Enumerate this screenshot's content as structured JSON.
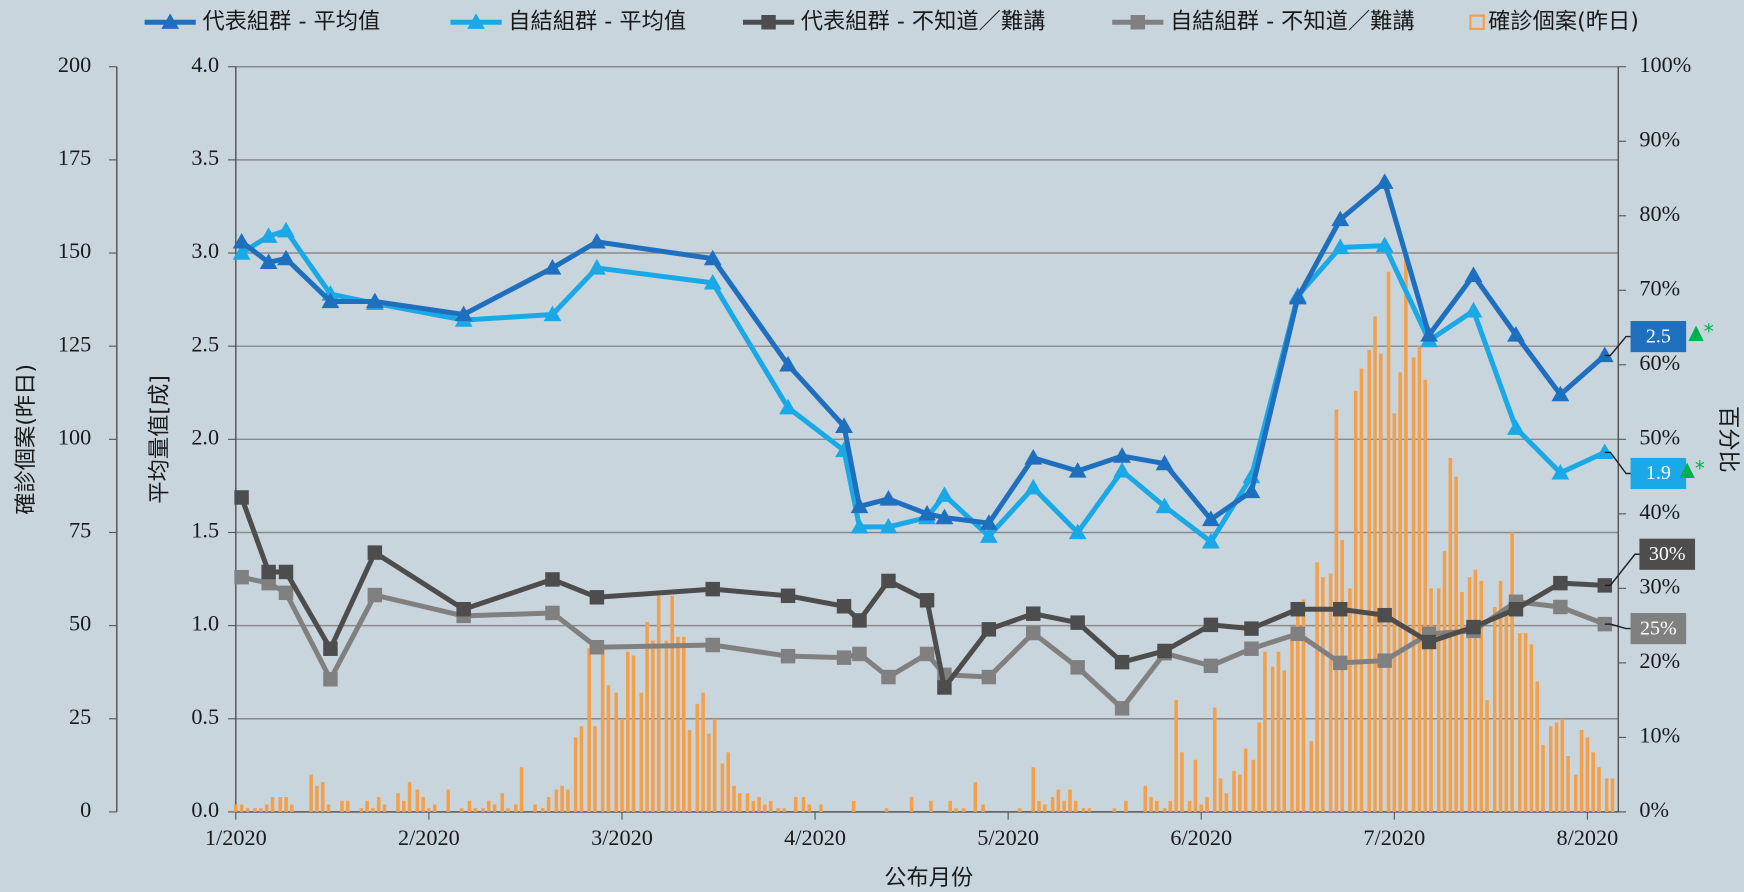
{
  "chart_data": {
    "type": "line",
    "x_label": "公布月份",
    "y_label": "平均量值[成]",
    "y2_label": "百分比",
    "y3_label": "確診個案(昨日)",
    "grid": true,
    "legend": "top",
    "xlim": [
      1,
      8.16
    ],
    "xticks": [
      {
        "value": 1,
        "label": "1/2020"
      },
      {
        "value": 2,
        "label": "2/2020"
      },
      {
        "value": 3,
        "label": "3/2020"
      },
      {
        "value": 4,
        "label": "4/2020"
      },
      {
        "value": 5,
        "label": "5/2020"
      },
      {
        "value": 6,
        "label": "6/2020"
      },
      {
        "value": 7,
        "label": "7/2020"
      },
      {
        "value": 8,
        "label": "8/2020"
      }
    ],
    "ylim": [
      0,
      4
    ],
    "yticks": [
      {
        "value": 0,
        "label": "0.0"
      },
      0.5,
      {
        "value": 1,
        "label": "1.0"
      },
      1.5,
      {
        "value": 2,
        "label": "2.0"
      },
      2.5,
      {
        "value": 3,
        "label": "3.0"
      },
      3.5,
      {
        "value": 4,
        "label": "4.0"
      }
    ],
    "y2lim": [
      0,
      100
    ],
    "y2ticks": [
      {
        "value": 0,
        "label": "0%"
      },
      {
        "value": 10,
        "label": "10%"
      },
      {
        "value": 20,
        "label": "20%"
      },
      {
        "value": 30,
        "label": "30%"
      },
      {
        "value": 40,
        "label": "40%"
      },
      {
        "value": 50,
        "label": "50%"
      },
      {
        "value": 60,
        "label": "60%"
      },
      {
        "value": 70,
        "label": "70%"
      },
      {
        "value": 80,
        "label": "80%"
      },
      {
        "value": 90,
        "label": "90%"
      },
      {
        "value": 100,
        "label": "100%"
      }
    ],
    "y3lim": [
      0,
      200
    ],
    "y3ticks": [
      0,
      25,
      50,
      75,
      100,
      125,
      150,
      175,
      200
    ],
    "x": [
      1.03,
      1.17,
      1.26,
      1.49,
      1.72,
      2.18,
      2.64,
      2.87,
      3.47,
      3.86,
      4.15,
      4.23,
      4.38,
      4.58,
      4.67,
      4.9,
      5.13,
      5.36,
      5.59,
      5.81,
      6.05,
      6.26,
      6.5,
      6.72,
      6.95,
      7.18,
      7.41,
      7.63,
      7.86,
      8.09
    ],
    "series": [
      {
        "name": "代表組群 - 平均值",
        "color": "#1f6fbf",
        "type": "line",
        "marker": "triangle",
        "end_label": "2.5",
        "end_flag": "▲*",
        "flag_color": "#00b050",
        "values": [
          3.06,
          2.95,
          2.97,
          2.74,
          2.74,
          2.67,
          2.92,
          3.06,
          2.97,
          2.4,
          2.07,
          1.64,
          1.68,
          1.6,
          1.58,
          1.55,
          1.9,
          1.83,
          1.91,
          1.87,
          1.57,
          1.72,
          2.76,
          3.18,
          3.38,
          2.56,
          2.88,
          2.56,
          2.24,
          2.45
        ]
      },
      {
        "name": "自結組群 - 平均值",
        "color": "#1ba8e6",
        "type": "line",
        "marker": "triangle",
        "end_label": "1.9",
        "end_flag": "▲*",
        "flag_color": "#00b050",
        "values": [
          3.0,
          3.09,
          3.12,
          2.78,
          2.73,
          2.64,
          2.67,
          2.92,
          2.84,
          2.17,
          1.94,
          1.53,
          1.53,
          1.58,
          1.7,
          1.48,
          1.74,
          1.5,
          1.83,
          1.64,
          1.45,
          1.8,
          2.77,
          3.03,
          3.04,
          2.53,
          2.69,
          2.06,
          1.82,
          1.93
        ]
      },
      {
        "name": "代表組群 - 不知道／難講",
        "color": "#4d4d4d",
        "type": "line",
        "marker": "square",
        "axis": "y2",
        "end_label": "30%",
        "values": [
          42.2,
          32.2,
          32.2,
          21.9,
          34.8,
          27.2,
          31.2,
          28.8,
          29.9,
          29.0,
          27.6,
          25.7,
          31.0,
          28.4,
          16.7,
          24.5,
          26.6,
          25.4,
          20.1,
          21.6,
          25.1,
          24.6,
          27.2,
          27.2,
          26.4,
          22.8,
          24.8,
          27.2,
          30.7,
          30.4
        ]
      },
      {
        "name": "自結組群 - 不知道／難講",
        "color": "#808080",
        "type": "line",
        "marker": "square",
        "axis": "y2",
        "end_label": "25%",
        "values": [
          31.5,
          30.7,
          29.4,
          17.8,
          29.1,
          26.3,
          26.7,
          22.1,
          22.4,
          20.9,
          20.7,
          21.2,
          18.1,
          21.2,
          18.4,
          18.1,
          24.0,
          19.4,
          13.9,
          21.3,
          19.6,
          21.9,
          23.9,
          20.0,
          20.3,
          23.9,
          24.3,
          28.2,
          27.5,
          25.2
        ]
      },
      {
        "name": "確診個案(昨日)",
        "color": "#f4a04a",
        "type": "bar",
        "axis": "y3",
        "x": [
          1.0,
          1.03,
          1.06,
          1.1,
          1.13,
          1.16,
          1.19,
          1.23,
          1.26,
          1.29,
          1.32,
          1.35,
          1.39,
          1.42,
          1.45,
          1.48,
          1.52,
          1.55,
          1.58,
          1.61,
          1.65,
          1.68,
          1.71,
          1.74,
          1.77,
          1.81,
          1.84,
          1.87,
          1.9,
          1.94,
          1.97,
          2.0,
          2.03,
          2.07,
          2.1,
          2.14,
          2.17,
          2.21,
          2.24,
          2.28,
          2.31,
          2.34,
          2.38,
          2.41,
          2.45,
          2.48,
          2.52,
          2.55,
          2.59,
          2.62,
          2.66,
          2.69,
          2.72,
          2.76,
          2.79,
          2.83,
          2.86,
          2.9,
          2.93,
          2.97,
          3.0,
          3.03,
          3.06,
          3.1,
          3.13,
          3.16,
          3.19,
          3.23,
          3.26,
          3.29,
          3.32,
          3.35,
          3.39,
          3.42,
          3.45,
          3.48,
          3.52,
          3.55,
          3.58,
          3.61,
          3.65,
          3.68,
          3.71,
          3.74,
          3.77,
          3.81,
          3.84,
          3.87,
          3.9,
          3.94,
          3.97,
          4.0,
          4.03,
          4.07,
          4.1,
          4.13,
          4.17,
          4.2,
          4.23,
          4.27,
          4.3,
          4.33,
          4.37,
          4.4,
          4.43,
          4.47,
          4.5,
          4.53,
          4.57,
          4.6,
          4.63,
          4.67,
          4.7,
          4.73,
          4.77,
          4.8,
          4.83,
          4.87,
          4.9,
          4.93,
          4.97,
          5.0,
          5.03,
          5.06,
          5.1,
          5.13,
          5.16,
          5.19,
          5.23,
          5.26,
          5.29,
          5.32,
          5.35,
          5.39,
          5.42,
          5.45,
          5.48,
          5.52,
          5.55,
          5.58,
          5.61,
          5.65,
          5.68,
          5.71,
          5.74,
          5.77,
          5.81,
          5.84,
          5.87,
          5.9,
          5.94,
          5.97,
          6.0,
          6.03,
          6.07,
          6.1,
          6.13,
          6.17,
          6.2,
          6.23,
          6.27,
          6.3,
          6.33,
          6.37,
          6.4,
          6.43,
          6.47,
          6.5,
          6.53,
          6.57,
          6.6,
          6.63,
          6.67,
          6.7,
          6.73,
          6.77,
          6.8,
          6.83,
          6.87,
          6.9,
          6.93,
          6.97,
          7.0,
          7.03,
          7.06,
          7.1,
          7.13,
          7.16,
          7.19,
          7.23,
          7.26,
          7.29,
          7.32,
          7.35,
          7.39,
          7.42,
          7.45,
          7.48,
          7.52,
          7.55,
          7.58,
          7.61,
          7.65,
          7.68,
          7.71,
          7.74,
          7.77,
          7.81,
          7.84,
          7.87,
          7.9,
          7.94,
          7.97,
          8.0,
          8.03,
          8.06,
          8.1,
          8.13
        ],
        "values": [
          2,
          2,
          1,
          1,
          1,
          2,
          4,
          4,
          4,
          2,
          0,
          0,
          10,
          7,
          8,
          2,
          0,
          3,
          3,
          0,
          1,
          3,
          1,
          4,
          2,
          0,
          5,
          3,
          8,
          6,
          4,
          1,
          2,
          0,
          6,
          0,
          1,
          3,
          1,
          1,
          3,
          2,
          5,
          1,
          2,
          12,
          0,
          2,
          1,
          4,
          6,
          7,
          6,
          20,
          23,
          44,
          23,
          44,
          34,
          32,
          25,
          43,
          42,
          32,
          51,
          46,
          58,
          46,
          58,
          47,
          47,
          22,
          29,
          32,
          21,
          25,
          13,
          16,
          7,
          5,
          5,
          3,
          4,
          2,
          3,
          1,
          1,
          0,
          4,
          4,
          2,
          0,
          2,
          0,
          0,
          0,
          0,
          3,
          0,
          0,
          0,
          0,
          1,
          0,
          0,
          0,
          4,
          0,
          0,
          3,
          0,
          0,
          3,
          1,
          1,
          0,
          8,
          2,
          0,
          0,
          0,
          0,
          0,
          1,
          0,
          12,
          3,
          2,
          4,
          6,
          3,
          6,
          3,
          1,
          1,
          0,
          0,
          0,
          1,
          0,
          3,
          0,
          0,
          7,
          4,
          3,
          1,
          3,
          30,
          16,
          3,
          14,
          2,
          4,
          28,
          9,
          5,
          11,
          10,
          17,
          14,
          24,
          43,
          39,
          43,
          38,
          47,
          54,
          57,
          19,
          67,
          63,
          64,
          108,
          73,
          60,
          113,
          119,
          124,
          133,
          123,
          145,
          107,
          118,
          150,
          122,
          125,
          116,
          60,
          60,
          70,
          95,
          90,
          59,
          63,
          65,
          62,
          30,
          55,
          62,
          55,
          75,
          48,
          48,
          45,
          35,
          18,
          23,
          24,
          25,
          15,
          10,
          22,
          20,
          16,
          12,
          9,
          9
        ]
      }
    ]
  }
}
